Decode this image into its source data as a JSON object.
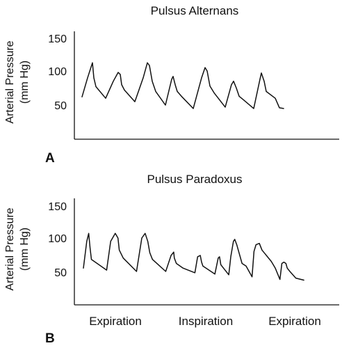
{
  "chart_data": [
    {
      "type": "line",
      "panel": "A",
      "title": "Pulsus Alternans",
      "ylabel": "Arterial Pressure",
      "ylabel_unit": "(mm Hg)",
      "yticks": [
        150,
        100,
        50
      ],
      "ylim": [
        15,
        155
      ],
      "xlabels": [],
      "grid": false,
      "series": [
        {
          "x": [
            0,
            8,
            15,
            17,
            20,
            34,
            45,
            52,
            55,
            57,
            61,
            76,
            88,
            94,
            97,
            101,
            106,
            120,
            129,
            131,
            134,
            137,
            143,
            160,
            172,
            177,
            180,
            184,
            190,
            206,
            215,
            218,
            222,
            226,
            232,
            247,
            256,
            258,
            262,
            265,
            278,
            284,
            290
          ],
          "y": [
            62,
            90,
            112,
            90,
            77,
            60,
            85,
            98,
            95,
            80,
            72,
            55,
            90,
            112,
            108,
            85,
            70,
            50,
            88,
            92,
            80,
            70,
            63,
            45,
            90,
            105,
            100,
            78,
            68,
            47,
            80,
            85,
            75,
            63,
            58,
            45,
            88,
            97,
            85,
            70,
            60,
            46,
            45
          ]
        }
      ]
    },
    {
      "type": "line",
      "panel": "B",
      "title": "Pulsus Paradoxus",
      "ylabel": "Arterial Pressure",
      "ylabel_unit": "(mm Hg)",
      "yticks": [
        150,
        100,
        50
      ],
      "ylim": [
        10,
        155
      ],
      "xlabels": [
        "Expiration",
        "Inspiration",
        "Expiration"
      ],
      "grid": false,
      "series": [
        {
          "x": [
            0,
            5,
            8,
            10,
            12,
            35,
            41,
            48,
            52,
            54,
            60,
            80,
            88,
            93,
            97,
            100,
            104,
            124,
            132,
            136,
            137,
            140,
            150,
            168,
            172,
            176,
            178,
            180,
            198,
            203,
            205,
            207,
            219,
            222,
            226,
            228,
            231,
            239,
            245,
            254,
            257,
            260,
            265,
            269,
            283,
            289,
            296,
            299,
            302,
            305,
            307,
            311,
            320,
            332
          ],
          "y": [
            55,
            95,
            107,
            85,
            68,
            52,
            95,
            107,
            100,
            82,
            70,
            50,
            100,
            107,
            95,
            78,
            68,
            50,
            74,
            79,
            70,
            62,
            55,
            48,
            72,
            74,
            64,
            58,
            46,
            70,
            72,
            60,
            45,
            72,
            95,
            98,
            90,
            62,
            58,
            42,
            80,
            90,
            92,
            82,
            65,
            55,
            38,
            62,
            64,
            62,
            55,
            50,
            40,
            37
          ]
        }
      ]
    }
  ]
}
